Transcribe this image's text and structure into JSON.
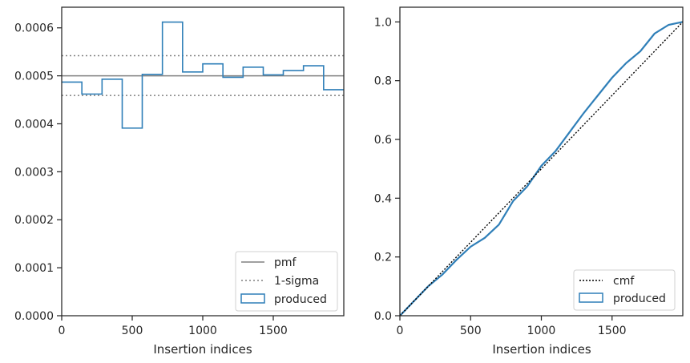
{
  "chart_data": [
    {
      "type": "histogram",
      "xlabel": "Insertion indices",
      "ylabel": "",
      "xlim": [
        0,
        2000
      ],
      "ylim": [
        0,
        0.000643
      ],
      "x_ticks": [
        0,
        500,
        1000,
        1500
      ],
      "x_tick_labels": [
        "0",
        "500",
        "1000",
        "1500"
      ],
      "y_ticks": [
        0,
        0.0001,
        0.0002,
        0.0003,
        0.0004,
        0.0005,
        0.0006
      ],
      "y_tick_labels": [
        "0.0000",
        "0.0001",
        "0.0002",
        "0.0003",
        "0.0004",
        "0.0005",
        "0.0006"
      ],
      "legend_placement": "lower right",
      "pmf": 0.0005,
      "sigma_band": [
        0.000459,
        0.000542
      ],
      "bin_edges": [
        0,
        143,
        286,
        429,
        571,
        714,
        857,
        1000,
        1143,
        1286,
        1429,
        1571,
        1714,
        1857,
        2000
      ],
      "values": [
        0.000487,
        0.000462,
        0.000493,
        0.000391,
        0.000503,
        0.000612,
        0.000508,
        0.000525,
        0.000497,
        0.000518,
        0.000502,
        0.000511,
        0.000521,
        0.000471
      ],
      "legend": [
        {
          "label": "pmf",
          "style": "solid-gray"
        },
        {
          "label": "1-sigma",
          "style": "dotted-gray"
        },
        {
          "label": "produced",
          "style": "step-blue"
        }
      ]
    },
    {
      "type": "line",
      "xlabel": "Insertion indices",
      "ylabel": "",
      "xlim": [
        0,
        2000
      ],
      "ylim": [
        0,
        1.05
      ],
      "x_ticks": [
        0,
        500,
        1000,
        1500
      ],
      "x_tick_labels": [
        "0",
        "500",
        "1000",
        "1500"
      ],
      "y_ticks": [
        0,
        0.2,
        0.4,
        0.6,
        0.8,
        1.0
      ],
      "y_tick_labels": [
        "0.0",
        "0.2",
        "0.4",
        "0.6",
        "0.8",
        "1.0"
      ],
      "legend_placement": "lower right",
      "cmf_points": [
        [
          0,
          0
        ],
        [
          2000,
          1.0
        ]
      ],
      "produced_points": [
        [
          0,
          0
        ],
        [
          100,
          0.05
        ],
        [
          200,
          0.1
        ],
        [
          300,
          0.14
        ],
        [
          400,
          0.19
        ],
        [
          500,
          0.235
        ],
        [
          600,
          0.265
        ],
        [
          700,
          0.31
        ],
        [
          800,
          0.39
        ],
        [
          900,
          0.44
        ],
        [
          1000,
          0.51
        ],
        [
          1100,
          0.56
        ],
        [
          1200,
          0.625
        ],
        [
          1300,
          0.69
        ],
        [
          1400,
          0.75
        ],
        [
          1500,
          0.81
        ],
        [
          1600,
          0.86
        ],
        [
          1700,
          0.9
        ],
        [
          1800,
          0.96
        ],
        [
          1900,
          0.99
        ],
        [
          2000,
          1.0
        ]
      ],
      "legend": [
        {
          "label": "cmf",
          "style": "dotted-black"
        },
        {
          "label": "produced",
          "style": "step-blue"
        }
      ]
    }
  ],
  "colors": {
    "produced": "#2f7fb8",
    "pmf": "#808080",
    "sigma": "#808080",
    "cmf": "#000000",
    "axes": "#262626"
  }
}
